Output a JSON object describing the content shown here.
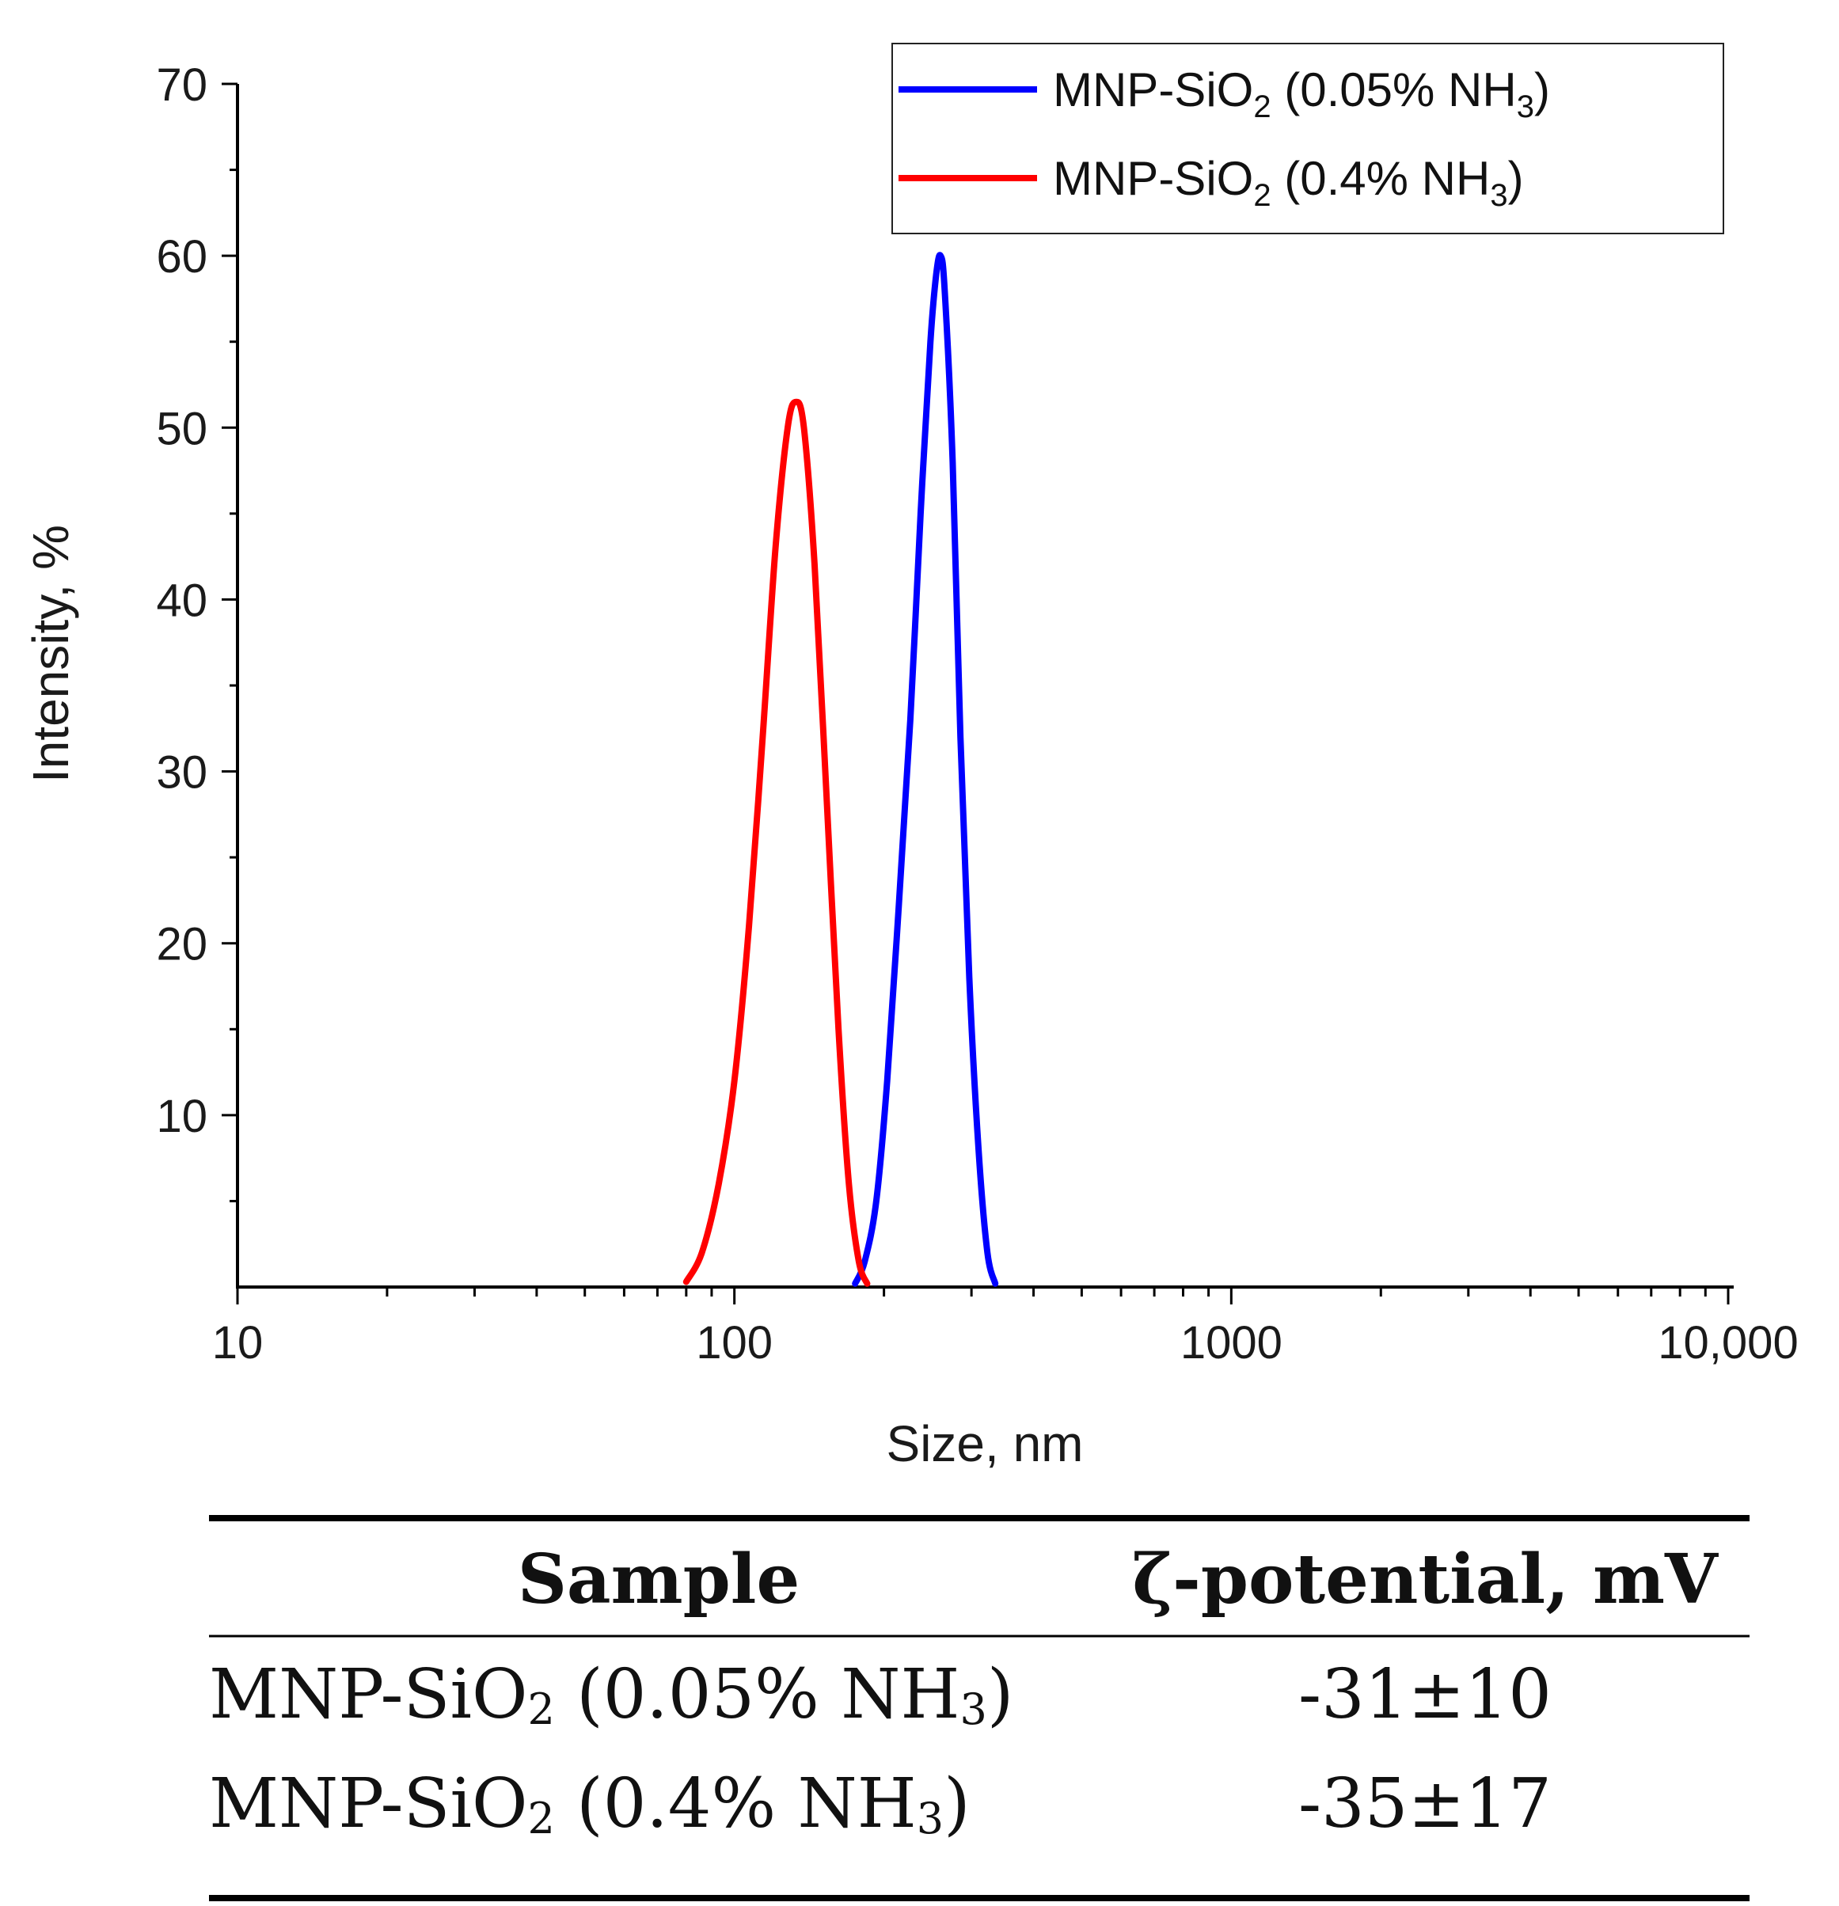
{
  "chart_data": {
    "type": "line",
    "xscale": "log",
    "xlim": [
      10,
      10000
    ],
    "ylim": [
      0,
      70
    ],
    "xlabel": "Size, nm",
    "ylabel": "Intensity, %",
    "x_ticks": [
      {
        "value": 10,
        "label": "10"
      },
      {
        "value": 100,
        "label": "100"
      },
      {
        "value": 1000,
        "label": "1000"
      },
      {
        "value": 10000,
        "label": "10,000"
      }
    ],
    "y_ticks": [
      {
        "value": 10,
        "label": "10"
      },
      {
        "value": 20,
        "label": "20"
      },
      {
        "value": 30,
        "label": "30"
      },
      {
        "value": 40,
        "label": "40"
      },
      {
        "value": 50,
        "label": "50"
      },
      {
        "value": 60,
        "label": "60"
      },
      {
        "value": 70,
        "label": "70"
      }
    ],
    "legend_position": "top-right",
    "series": [
      {
        "name": "MNP-SiO2 (0.05% NH3)",
        "label_base": "MNP-SiO",
        "label_sub1": "2",
        "label_mid": " (0.05% NH",
        "label_sub2": "3",
        "label_end": ")",
        "color": "#0000ff",
        "x": [
          175,
          183,
          193,
          203,
          214,
          226,
          237,
          248,
          255,
          260,
          265,
          275,
          285,
          297,
          310,
          323,
          335
        ],
        "y": [
          0.2,
          1.5,
          5,
          12,
          22,
          33,
          45,
          55,
          59,
          60,
          58,
          48,
          32,
          18,
          8,
          2,
          0.2
        ]
      },
      {
        "name": "MNP-SiO2 (0.4% NH3)",
        "label_base": "MNP-SiO",
        "label_sub1": "2",
        "label_mid": " (0.4% NH",
        "label_sub2": "3",
        "label_end": ")",
        "color": "#ff0000",
        "x": [
          80,
          86,
          93,
          100,
          107,
          114,
          121,
          128,
          133,
          138,
          145,
          153,
          162,
          170,
          178,
          185
        ],
        "y": [
          0.3,
          2,
          6,
          12,
          21,
          32,
          43,
          50,
          51.5,
          50,
          42,
          29,
          15,
          6,
          1.5,
          0.2
        ]
      }
    ]
  },
  "table": {
    "headers": [
      "Sample",
      "ζ-potential, mV"
    ],
    "rows": [
      {
        "sample_base": "MNP-SiO",
        "sample_sub1": "2",
        "sample_mid": " (0.05% NH",
        "sample_sub2": "3",
        "sample_end": ")",
        "value": "-31±10"
      },
      {
        "sample_base": "MNP-SiO",
        "sample_sub1": "2",
        "sample_mid": " (0.4% NH",
        "sample_sub2": "3",
        "sample_end": ")",
        "value": "-35±17"
      }
    ]
  }
}
